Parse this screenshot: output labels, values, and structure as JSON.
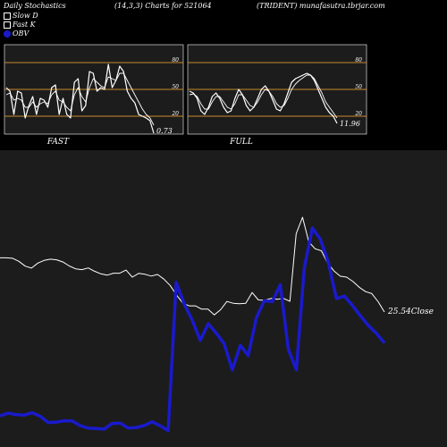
{
  "header": {
    "left": "Daily Stochastics",
    "params": "(14,3,3) Charts for 521064",
    "right": "(TRIDENT) munafasutra.tbrjar.com"
  },
  "legend": {
    "slow_d": "Slow  D",
    "fast_k": "Fast K",
    "obv": "OBV"
  },
  "colors": {
    "bg": "#000000",
    "panel": "#1c1c1c",
    "level": "#c98a2b",
    "obv": "#1a1acc",
    "line": "#ffffff"
  },
  "chart_data": [
    {
      "type": "line",
      "panel": "FAST",
      "label": "FAST",
      "last_value_label": "0.73",
      "ylim": [
        0,
        100
      ],
      "levels": [
        20,
        50,
        80
      ],
      "series": [
        {
          "name": "Fast K",
          "values": [
            52,
            48,
            22,
            48,
            46,
            18,
            32,
            42,
            22,
            40,
            38,
            30,
            52,
            55,
            22,
            40,
            22,
            18,
            58,
            62,
            26,
            32,
            70,
            68,
            48,
            52,
            50,
            78,
            52,
            60,
            76,
            70,
            48,
            40,
            35,
            22,
            20,
            18,
            15,
            1
          ]
        },
        {
          "name": "Slow  D",
          "values": [
            44,
            46,
            38,
            40,
            38,
            30,
            30,
            36,
            30,
            34,
            36,
            34,
            44,
            48,
            38,
            36,
            30,
            26,
            44,
            52,
            42,
            36,
            52,
            62,
            58,
            54,
            52,
            64,
            62,
            60,
            68,
            68,
            60,
            52,
            44,
            36,
            28,
            22,
            18,
            10
          ]
        }
      ]
    },
    {
      "type": "line",
      "panel": "FULL",
      "label": "FULL",
      "last_value_label": "11.96",
      "ylim": [
        0,
        100
      ],
      "levels": [
        20,
        50,
        80
      ],
      "series": [
        {
          "name": "Fast K",
          "values": [
            48,
            46,
            40,
            26,
            22,
            30,
            42,
            46,
            40,
            30,
            24,
            26,
            40,
            50,
            44,
            32,
            26,
            30,
            40,
            50,
            54,
            48,
            38,
            28,
            26,
            34,
            46,
            58,
            62,
            64,
            66,
            68,
            66,
            60,
            50,
            40,
            30,
            24,
            20,
            12
          ]
        },
        {
          "name": "Slow  D",
          "values": [
            44,
            45,
            42,
            34,
            28,
            28,
            36,
            42,
            42,
            36,
            30,
            28,
            34,
            44,
            44,
            38,
            32,
            30,
            36,
            44,
            50,
            48,
            42,
            34,
            30,
            32,
            40,
            50,
            56,
            60,
            63,
            66,
            66,
            62,
            54,
            46,
            36,
            30,
            24,
            18
          ]
        }
      ]
    },
    {
      "type": "line",
      "panel": "price",
      "close_label": "25.54Close",
      "series": [
        {
          "name": "Close",
          "values": [
            50.2,
            50.2,
            50.0,
            48.6,
            46.4,
            45.5,
            47.8,
            49.0,
            49.6,
            49.3,
            48.3,
            46.5,
            45.2,
            44.8,
            45.6,
            44.1,
            42.9,
            42.3,
            43.2,
            43.2,
            44.6,
            41.4,
            43.1,
            42.7,
            41.9,
            42.6,
            40.5,
            37.6,
            33.3,
            29.6,
            28.3,
            28.3,
            26.8,
            26.8,
            24.2,
            26.5,
            30.3,
            29.5,
            29.3,
            29.5,
            34.4,
            31.0,
            30.8,
            31.7,
            31.3,
            31.7,
            30.4,
            61.2,
            68.7,
            57.5,
            54.3,
            53.4,
            47.7,
            44.2,
            41.8,
            41.4,
            39.4,
            36.8,
            34.8,
            33.9,
            30.2,
            25.5
          ]
        }
      ]
    },
    {
      "type": "line",
      "panel": "obv",
      "series": [
        {
          "name": "OBV",
          "values": [
            9.8,
            10.9,
            10.3,
            10.1,
            11.1,
            9.7,
            7.2,
            7.3,
            7.9,
            7.8,
            6.0,
            5.0,
            4.8,
            4.6,
            6.8,
            7.0,
            5.0,
            5.2,
            6.0,
            7.5,
            5.9,
            4.0,
            62.5,
            54.1,
            47.6,
            39.6,
            46.2,
            42.5,
            38.3,
            28.0,
            37.7,
            33.6,
            48.5,
            55.3,
            54.9,
            61.6,
            36.1,
            28.0,
            68.3,
            84.0,
            79.6,
            70.4,
            56.1,
            57.1,
            53.4,
            49.3,
            45.5,
            42.4,
            38.6
          ]
        }
      ]
    }
  ]
}
